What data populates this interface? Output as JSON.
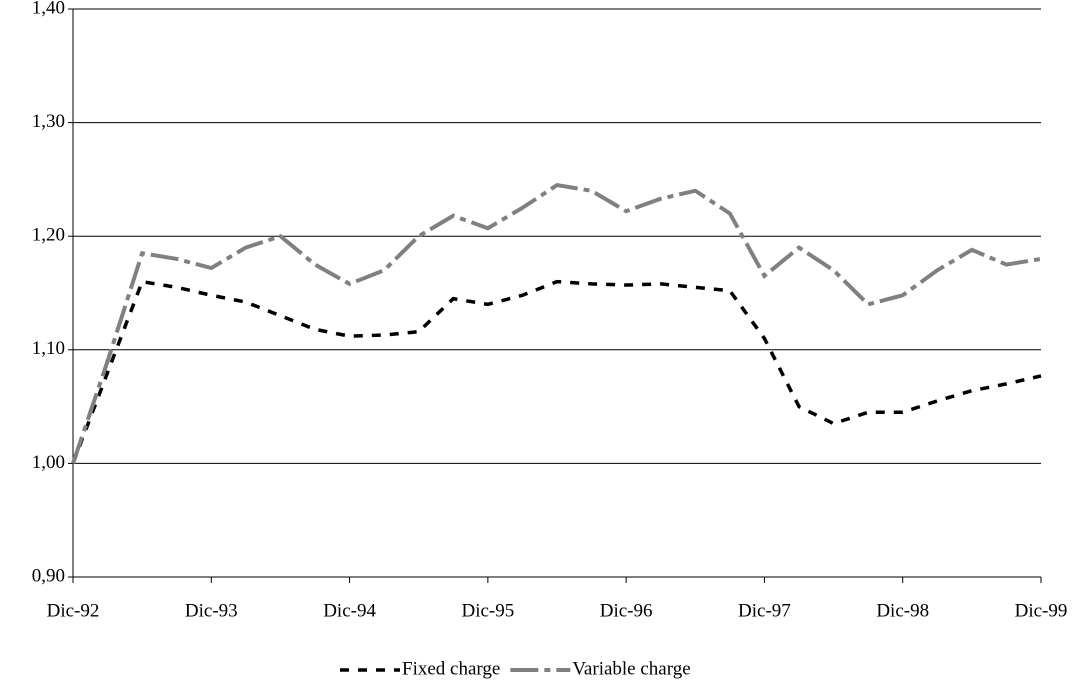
{
  "chart_data": {
    "type": "line",
    "categories": [
      "Dic-92",
      null,
      null,
      null,
      "Dic-93",
      null,
      null,
      null,
      "Dic-94",
      null,
      null,
      null,
      "Dic-95",
      null,
      null,
      null,
      "Dic-96",
      null,
      null,
      null,
      "Dic-97",
      null,
      null,
      null,
      "Dic-98",
      null,
      null,
      null,
      "Dic-99"
    ],
    "series": [
      {
        "name": "Fixed charge",
        "color": "#000000",
        "values": [
          1.0,
          1.08,
          1.16,
          1.155,
          1.148,
          1.142,
          1.13,
          1.118,
          1.112,
          1.113,
          1.116,
          1.145,
          1.14,
          1.148,
          1.16,
          1.158,
          1.157,
          1.158,
          1.155,
          1.152,
          1.11,
          1.05,
          1.035,
          1.045,
          1.045,
          1.055,
          1.064,
          1.07,
          1.077
        ]
      },
      {
        "name": "Variable charge",
        "color": "#808080",
        "values": [
          1.0,
          1.09,
          1.185,
          1.18,
          1.172,
          1.19,
          1.2,
          1.175,
          1.158,
          1.17,
          1.2,
          1.218,
          1.207,
          1.225,
          1.245,
          1.24,
          1.222,
          1.233,
          1.24,
          1.22,
          1.165,
          1.19,
          1.17,
          1.14,
          1.148,
          1.17,
          1.188,
          1.175,
          1.18
        ]
      }
    ],
    "ylim": [
      0.9,
      1.4
    ],
    "yticks": [
      {
        "value": 0.9,
        "label": "0,90"
      },
      {
        "value": 1.0,
        "label": "1,00"
      },
      {
        "value": 1.1,
        "label": "1,10"
      },
      {
        "value": 1.2,
        "label": "1,20"
      },
      {
        "value": 1.3,
        "label": "1,30"
      },
      {
        "value": 1.4,
        "label": "1,40"
      }
    ],
    "grid": true,
    "legend": "bottom"
  }
}
